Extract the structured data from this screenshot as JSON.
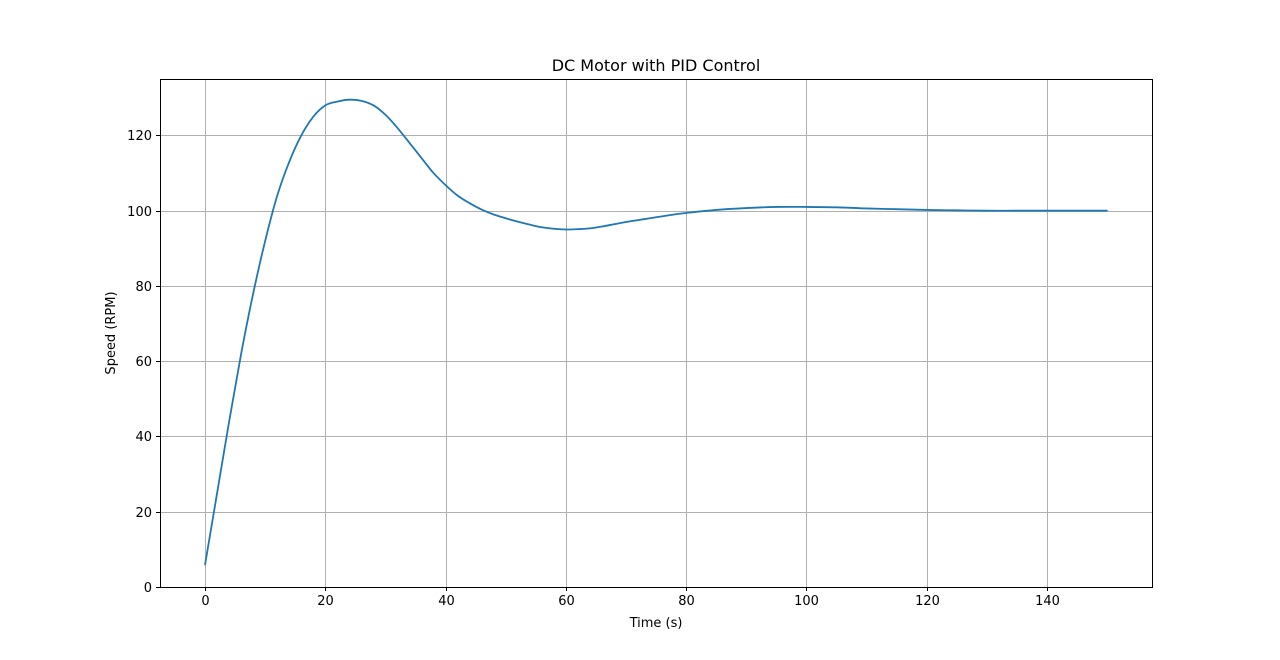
{
  "chart_data": {
    "type": "line",
    "title": "DC Motor with PID Control",
    "xlabel": "Time (s)",
    "ylabel": "Speed (RPM)",
    "xlim": [
      -7.5,
      157.5
    ],
    "ylim": [
      0,
      135
    ],
    "xticks": [
      0,
      20,
      40,
      60,
      80,
      100,
      120,
      140
    ],
    "yticks": [
      0,
      20,
      40,
      60,
      80,
      100,
      120
    ],
    "grid": true,
    "colors": {
      "series": "#1f77b4"
    },
    "series": [
      {
        "x": [
          0,
          2,
          4,
          6,
          8,
          10,
          12,
          14,
          16,
          18,
          20,
          22,
          24,
          26,
          28,
          30,
          32,
          34,
          36,
          38,
          40,
          42,
          44,
          46,
          48,
          50,
          52,
          54,
          56,
          58,
          60,
          62,
          64,
          66,
          68,
          70,
          72,
          74,
          76,
          78,
          80,
          85,
          90,
          95,
          100,
          105,
          110,
          115,
          120,
          125,
          130,
          135,
          140,
          145,
          150
        ],
        "y": [
          6,
          25,
          44,
          62,
          78,
          92,
          104,
          113,
          120,
          125,
          128,
          129,
          129.5,
          129.2,
          128,
          125.5,
          122,
          118,
          114,
          110,
          106.8,
          104,
          102,
          100.3,
          99,
          98,
          97.1,
          96.3,
          95.6,
          95.2,
          95,
          95.1,
          95.3,
          95.8,
          96.4,
          97,
          97.5,
          98,
          98.5,
          99,
          99.4,
          100.2,
          100.7,
          101,
          101,
          100.9,
          100.6,
          100.4,
          100.2,
          100.1,
          100,
          100,
          100,
          100,
          100
        ]
      }
    ]
  }
}
